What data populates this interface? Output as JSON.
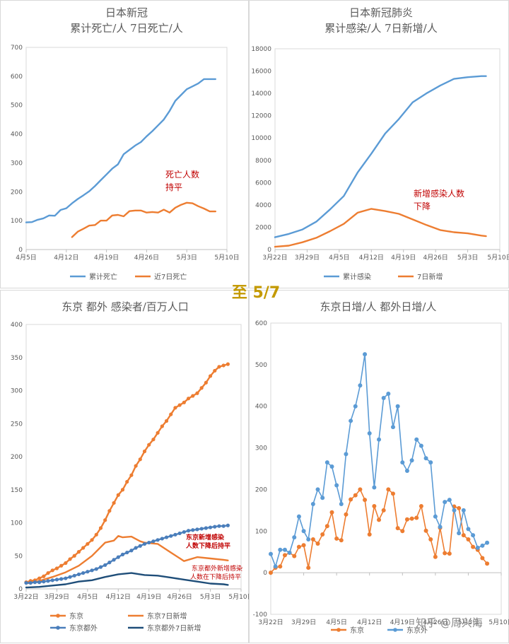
{
  "center_label": "至 5/7",
  "watermark": "知乎 @周兴海",
  "chart_data": [
    {
      "type": "line",
      "title": "日本新冠",
      "subtitle": "累计死亡/人  7日死亡/人",
      "xticks": [
        "4月5日",
        "4月12日",
        "4月19日",
        "4月26日",
        "5月3日",
        "5月10日"
      ],
      "xlim": [
        0,
        35
      ],
      "ylim": [
        0,
        700
      ],
      "yticks": [
        0,
        100,
        200,
        300,
        400,
        500,
        600,
        700
      ],
      "grid": false,
      "legend_position": "bottom",
      "series": [
        {
          "name": "累计死亡",
          "color": "#5b9bd5",
          "x": [
            0,
            1,
            2,
            3,
            4,
            5,
            6,
            7,
            8,
            9,
            10,
            11,
            12,
            13,
            14,
            15,
            16,
            17,
            18,
            19,
            20,
            21,
            22,
            23,
            24,
            25,
            26,
            27,
            28,
            29,
            30,
            31,
            32,
            33
          ],
          "y": [
            94,
            95,
            103,
            108,
            118,
            117,
            137,
            143,
            160,
            175,
            188,
            202,
            220,
            240,
            260,
            280,
            295,
            330,
            345,
            360,
            372,
            392,
            410,
            430,
            450,
            480,
            515,
            535,
            555,
            565,
            575,
            590,
            590,
            590
          ]
        },
        {
          "name": "近7日死亡",
          "color": "#ed7d31",
          "x": [
            8,
            9,
            10,
            11,
            12,
            13,
            14,
            15,
            16,
            17,
            18,
            19,
            20,
            21,
            22,
            23,
            24,
            25,
            26,
            27,
            28,
            29,
            30,
            31,
            32,
            33
          ],
          "y": [
            43,
            62,
            72,
            83,
            85,
            100,
            100,
            118,
            120,
            115,
            133,
            135,
            135,
            128,
            130,
            128,
            138,
            128,
            145,
            155,
            162,
            160,
            150,
            142,
            132,
            132
          ]
        }
      ],
      "annotation": {
        "text_line1": "死亡人数",
        "text_line2": "持平",
        "color": "#c00000"
      }
    },
    {
      "type": "line",
      "title": "日本新冠肺炎",
      "subtitle": "累计感染/人  7日新增/人",
      "xticks": [
        "3月22日",
        "3月29日",
        "4月5日",
        "4月12日",
        "4月19日",
        "4月26日",
        "5月3日",
        "5月10日"
      ],
      "xlim": [
        0,
        49
      ],
      "ylim": [
        0,
        18000
      ],
      "yticks": [
        0,
        2000,
        4000,
        6000,
        8000,
        10000,
        12000,
        14000,
        16000,
        18000
      ],
      "grid": false,
      "legend_position": "bottom",
      "series": [
        {
          "name": "累计感染",
          "color": "#5b9bd5",
          "x": [
            0,
            3,
            6,
            9,
            12,
            15,
            18,
            21,
            24,
            27,
            30,
            33,
            36,
            39,
            42,
            45,
            46
          ],
          "y": [
            1100,
            1400,
            1800,
            2500,
            3600,
            4800,
            6900,
            8600,
            10400,
            11700,
            13200,
            14000,
            14700,
            15300,
            15450,
            15550,
            15550
          ]
        },
        {
          "name": "7日新增",
          "color": "#ed7d31",
          "x": [
            0,
            3,
            6,
            9,
            12,
            15,
            18,
            21,
            24,
            27,
            30,
            33,
            36,
            39,
            42,
            45,
            46
          ],
          "y": [
            250,
            350,
            650,
            1050,
            1650,
            2300,
            3300,
            3650,
            3450,
            3200,
            2700,
            2200,
            1750,
            1550,
            1450,
            1250,
            1200
          ]
        }
      ],
      "annotation": {
        "text_line1": "新增感染人数",
        "text_line2": "下降",
        "color": "#c00000"
      }
    },
    {
      "type": "line",
      "title": "东京  都外  感染者/百万人口",
      "xticks": [
        "3月22日",
        "3月29日",
        "4月5日",
        "4月12日",
        "4月19日",
        "4月26日",
        "5月3日",
        "5月10日"
      ],
      "xlim": [
        0,
        49
      ],
      "ylim": [
        0,
        400
      ],
      "yticks": [
        0,
        50,
        100,
        150,
        200,
        250,
        300,
        350,
        400
      ],
      "grid": false,
      "legend_position": "bottom",
      "series": [
        {
          "name": "东京",
          "color": "#ed7d31",
          "markers": true,
          "x": [
            0,
            1,
            2,
            3,
            4,
            5,
            6,
            7,
            8,
            9,
            10,
            11,
            12,
            13,
            14,
            15,
            16,
            17,
            18,
            19,
            20,
            21,
            22,
            23,
            24,
            25,
            26,
            27,
            28,
            29,
            30,
            31,
            32,
            33,
            34,
            35,
            36,
            37,
            38,
            39,
            40,
            41,
            42,
            43,
            44,
            45,
            46
          ],
          "y": [
            10,
            12,
            13,
            16,
            19,
            24,
            28,
            31,
            35,
            39,
            45,
            50,
            56,
            62,
            68,
            74,
            82,
            92,
            104,
            118,
            130,
            142,
            150,
            162,
            172,
            186,
            196,
            208,
            218,
            226,
            236,
            246,
            254,
            264,
            274,
            278,
            282,
            288,
            292,
            296,
            304,
            312,
            322,
            330,
            336,
            338,
            340
          ]
        },
        {
          "name": "东京7日新增",
          "color": "#ed7d31",
          "markers": false,
          "x": [
            0,
            3,
            6,
            9,
            12,
            15,
            18,
            20,
            21,
            22,
            24,
            26,
            27,
            30,
            33,
            36,
            39,
            42,
            45,
            46
          ],
          "y": [
            8,
            12,
            18,
            25,
            35,
            50,
            70,
            73,
            80,
            78,
            79,
            72,
            70,
            68,
            55,
            42,
            48,
            46,
            44,
            43
          ]
        },
        {
          "name": "东京都外",
          "color": "#4a7ebb",
          "markers": true,
          "x": [
            0,
            1,
            2,
            3,
            4,
            5,
            6,
            7,
            8,
            9,
            10,
            11,
            12,
            13,
            14,
            15,
            16,
            17,
            18,
            19,
            20,
            21,
            22,
            23,
            24,
            25,
            26,
            27,
            28,
            29,
            30,
            31,
            32,
            33,
            34,
            35,
            36,
            37,
            38,
            39,
            40,
            41,
            42,
            43,
            44,
            45,
            46
          ],
          "y": [
            9,
            9,
            10,
            10,
            11,
            12,
            13,
            14,
            15,
            16,
            18,
            20,
            22,
            24,
            26,
            28,
            30,
            33,
            36,
            40,
            44,
            48,
            52,
            55,
            58,
            62,
            65,
            68,
            70,
            72,
            74,
            76,
            78,
            80,
            82,
            84,
            86,
            88,
            89,
            90,
            91,
            92,
            93,
            94,
            95,
            95,
            96
          ]
        },
        {
          "name": "东京都外7日新增",
          "color": "#1f4e79",
          "markers": false,
          "x": [
            0,
            3,
            6,
            9,
            12,
            15,
            18,
            21,
            24,
            27,
            30,
            33,
            36,
            39,
            42,
            45,
            46
          ],
          "y": [
            2,
            3,
            5,
            7,
            11,
            13,
            18,
            22,
            24,
            21,
            20,
            17,
            14,
            11,
            8,
            7,
            6
          ]
        }
      ],
      "annotations": [
        {
          "text_line1": "东京新增感染",
          "text_line2": "人数下降后持平",
          "color": "#c00000"
        },
        {
          "text_line1": "东京都外新增感染",
          "text_line2": "人数在下降后持平",
          "color": "#c00000"
        }
      ]
    },
    {
      "type": "line",
      "title": "东京日增/人  都外日增/人",
      "xticks": [
        "3月22日",
        "3月29日",
        "4月5日",
        "4月12日",
        "4月19日",
        "4月26日",
        "5月3日",
        "5月10日"
      ],
      "xlim": [
        0,
        49
      ],
      "ylim": [
        -100,
        600
      ],
      "yticks": [
        -100,
        0,
        100,
        200,
        300,
        400,
        500,
        600
      ],
      "grid": false,
      "legend_position": "bottom",
      "series": [
        {
          "name": "东京",
          "color": "#ed7d31",
          "y": [
            0,
            12,
            15,
            42,
            48,
            40,
            62,
            66,
            12,
            80,
            70,
            92,
            112,
            145,
            82,
            78,
            140,
            176,
            186,
            200,
            175,
            92,
            160,
            127,
            150,
            200,
            190,
            107,
            100,
            128,
            130,
            132,
            160,
            101,
            80,
            38,
            108,
            47,
            46,
            159,
            155,
            90,
            80,
            62,
            55,
            35,
            22
          ]
        },
        {
          "name": "东京外",
          "color": "#5b9bd5",
          "y": [
            45,
            15,
            55,
            55,
            48,
            85,
            135,
            100,
            80,
            165,
            200,
            180,
            265,
            255,
            210,
            165,
            285,
            365,
            400,
            450,
            525,
            335,
            205,
            320,
            420,
            430,
            350,
            400,
            265,
            245,
            270,
            320,
            305,
            275,
            265,
            135,
            110,
            170,
            175,
            150,
            95,
            150,
            105,
            90,
            60,
            65,
            72
          ]
        }
      ]
    }
  ]
}
